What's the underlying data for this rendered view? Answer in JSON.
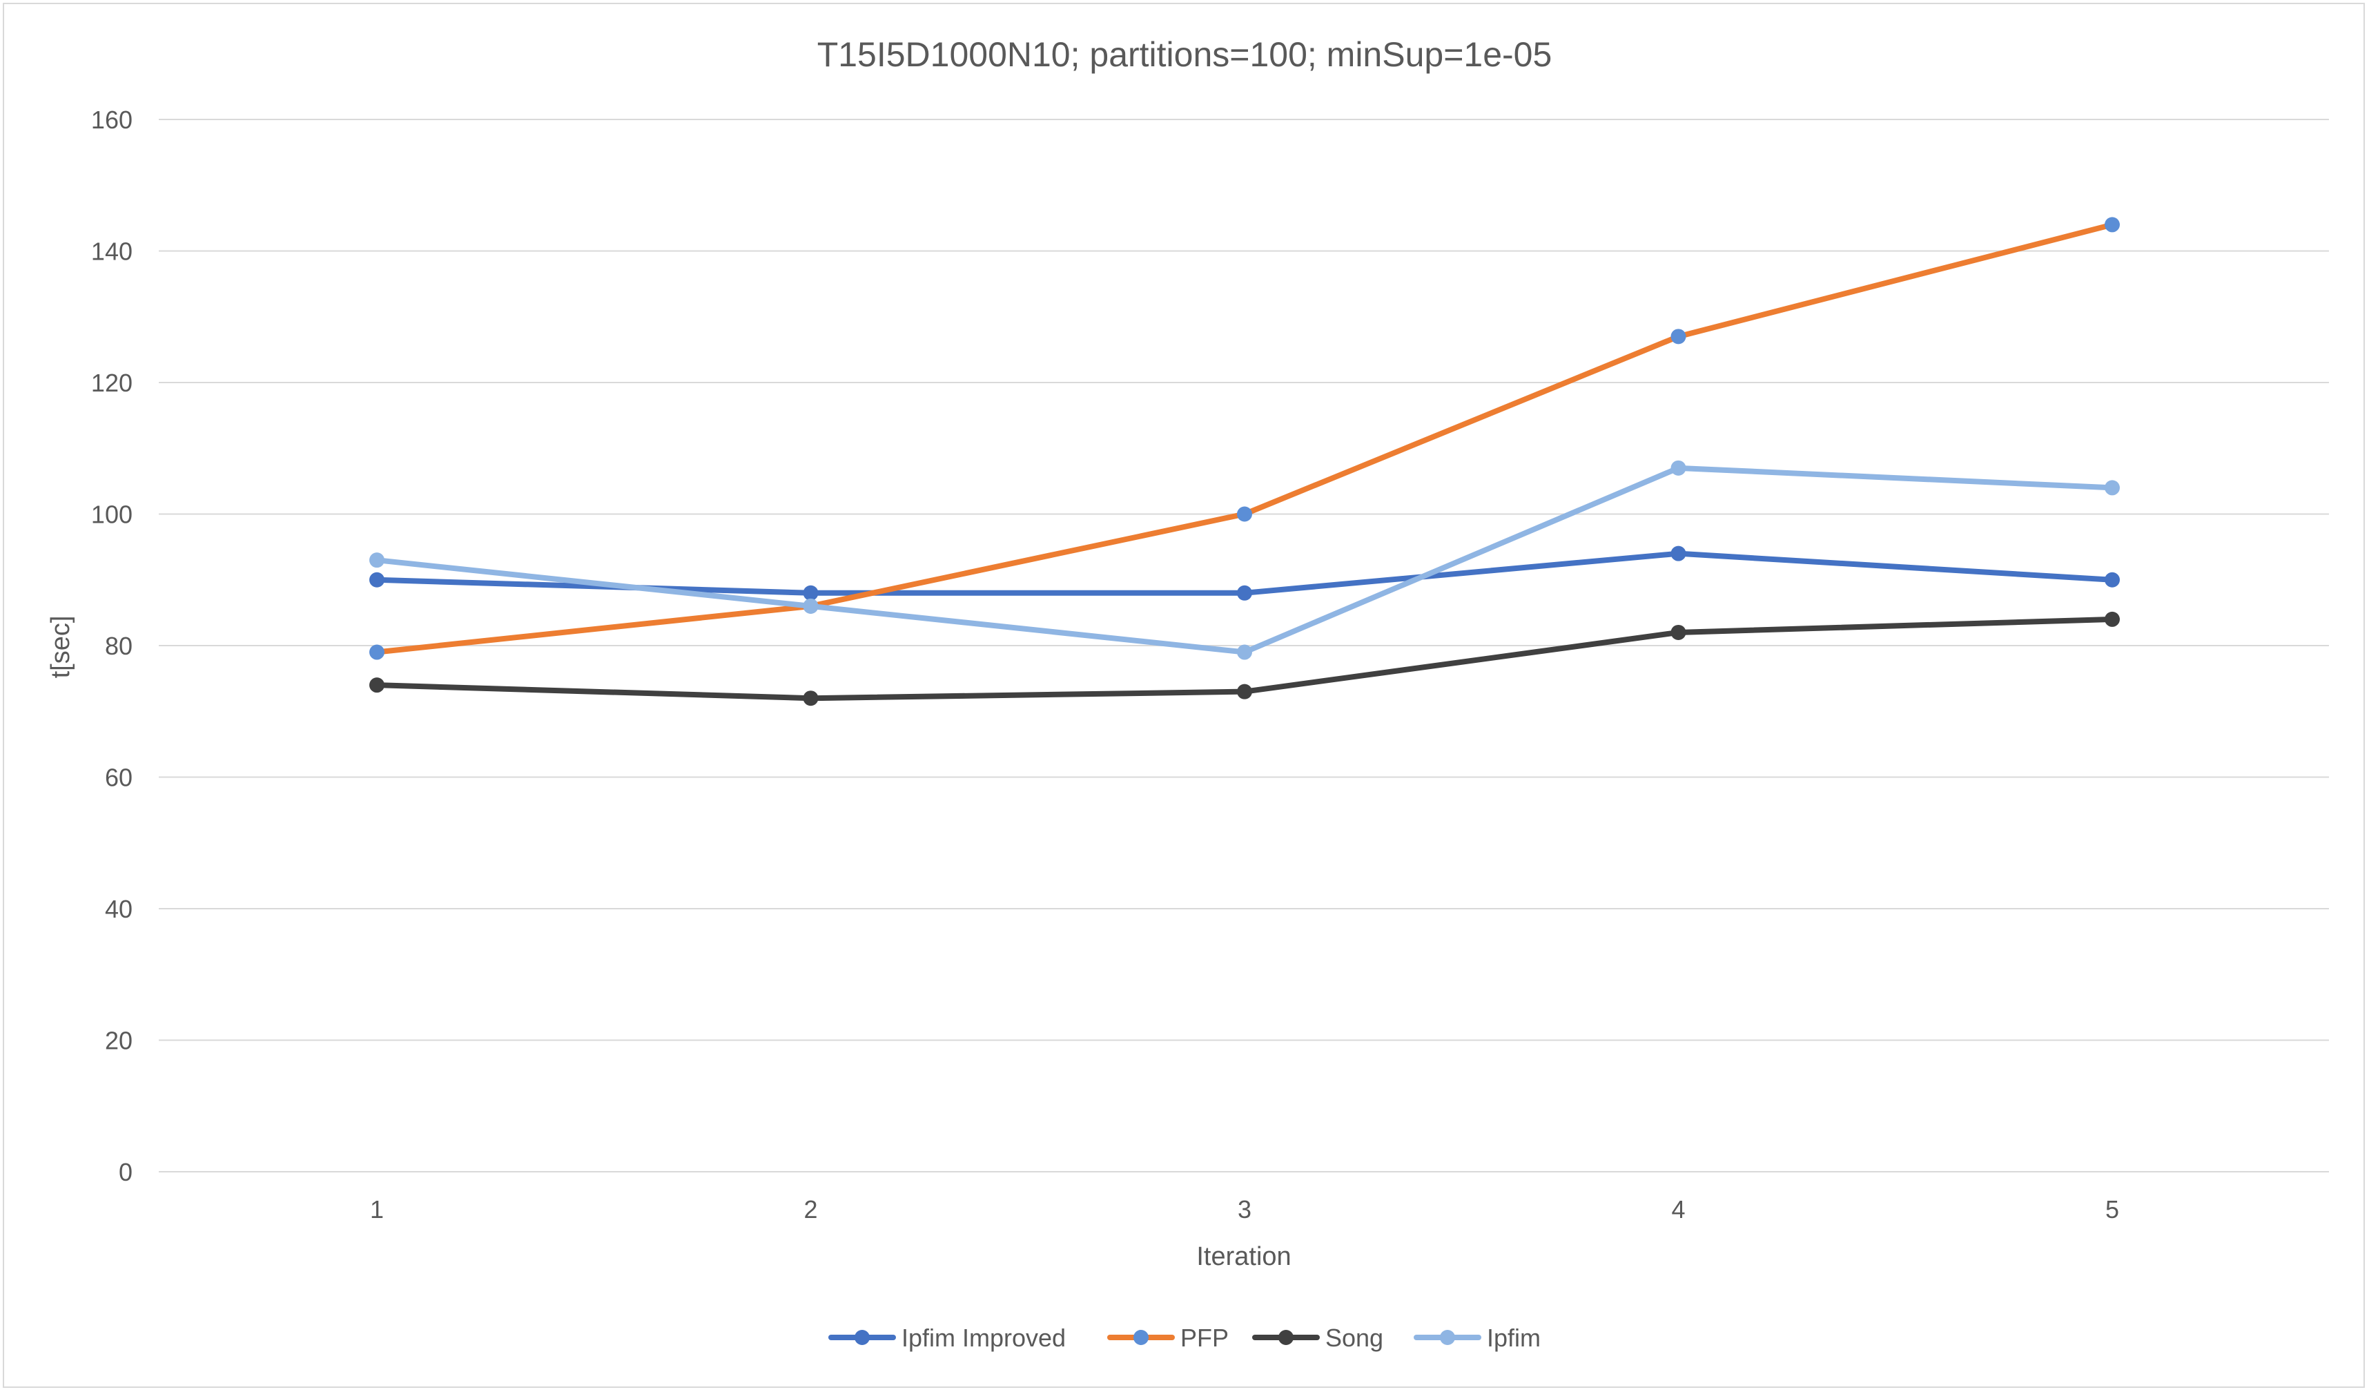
{
  "chart_data": {
    "type": "line",
    "title": "T15I5D1000N10; partitions=100; minSup=1e-05",
    "xlabel": "Iteration",
    "ylabel": "t[sec]",
    "categories": [
      "1",
      "2",
      "3",
      "4",
      "5"
    ],
    "ylim": [
      0,
      160
    ],
    "yticks": [
      "0",
      "20",
      "40",
      "60",
      "80",
      "100",
      "120",
      "140",
      "160"
    ],
    "grid": "horizontal",
    "legend_position": "bottom",
    "series": [
      {
        "name": "Ipfim Improved",
        "values": [
          90,
          88,
          88,
          94,
          90
        ],
        "line_color": "#4472C4",
        "marker_color": "#4472C4"
      },
      {
        "name": "PFP",
        "values": [
          79,
          86,
          100,
          127,
          144
        ],
        "line_color": "#ED7D31",
        "marker_color": "#5B8ED6"
      },
      {
        "name": "Song",
        "values": [
          74,
          72,
          73,
          82,
          84
        ],
        "line_color": "#404040",
        "marker_color": "#404040"
      },
      {
        "name": "Ipfim",
        "values": [
          93,
          86,
          79,
          107,
          104
        ],
        "line_color": "#8FB5E3",
        "marker_color": "#8FB5E3"
      }
    ],
    "colors": {
      "gridline": "#d9d9d9",
      "text": "#595959"
    }
  }
}
